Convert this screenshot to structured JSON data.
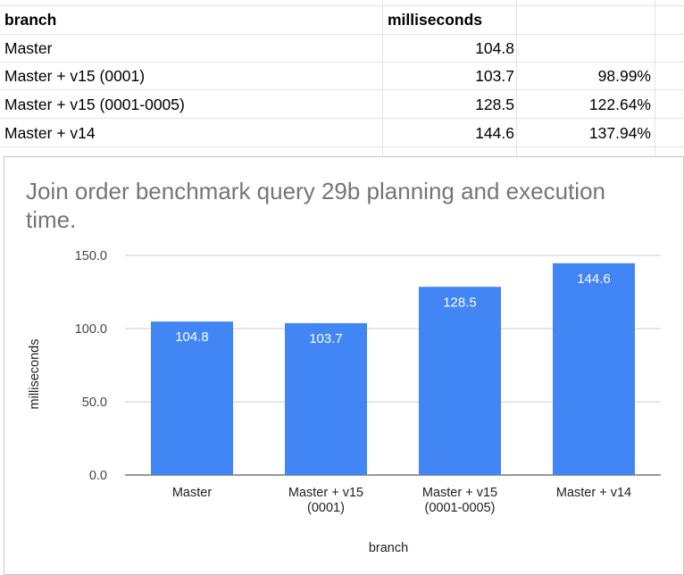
{
  "sheet": {
    "headers": [
      "branch",
      "milliseconds",
      ""
    ],
    "rows": [
      [
        "Master",
        "104.8",
        ""
      ],
      [
        "Master + v15 (0001)",
        "103.7",
        "98.99%"
      ],
      [
        "Master + v15 (0001-0005)",
        "128.5",
        "122.64%"
      ],
      [
        "Master + v14",
        "144.6",
        "137.94%"
      ]
    ]
  },
  "chart_data": {
    "type": "bar",
    "title": "Join order benchmark query 29b planning and execution time.",
    "xlabel": "branch",
    "ylabel": "milliseconds",
    "categories": [
      "Master",
      "Master + v15 (0001)",
      "Master + v15 (0001-0005)",
      "Master + v14"
    ],
    "category_lines": [
      [
        "Master"
      ],
      [
        "Master + v15",
        "(0001)"
      ],
      [
        "Master + v15",
        "(0001-0005)"
      ],
      [
        "Master + v14"
      ]
    ],
    "values": [
      104.8,
      103.7,
      128.5,
      144.6
    ],
    "data_labels": [
      "104.8",
      "103.7",
      "128.5",
      "144.6"
    ],
    "ylim": [
      0,
      150
    ],
    "yticks": [
      0,
      50,
      100,
      150
    ],
    "ytick_labels": [
      "0.0",
      "50.0",
      "100.0",
      "150.0"
    ],
    "bar_color": "#4285f4",
    "grid": true,
    "legend": "none"
  }
}
